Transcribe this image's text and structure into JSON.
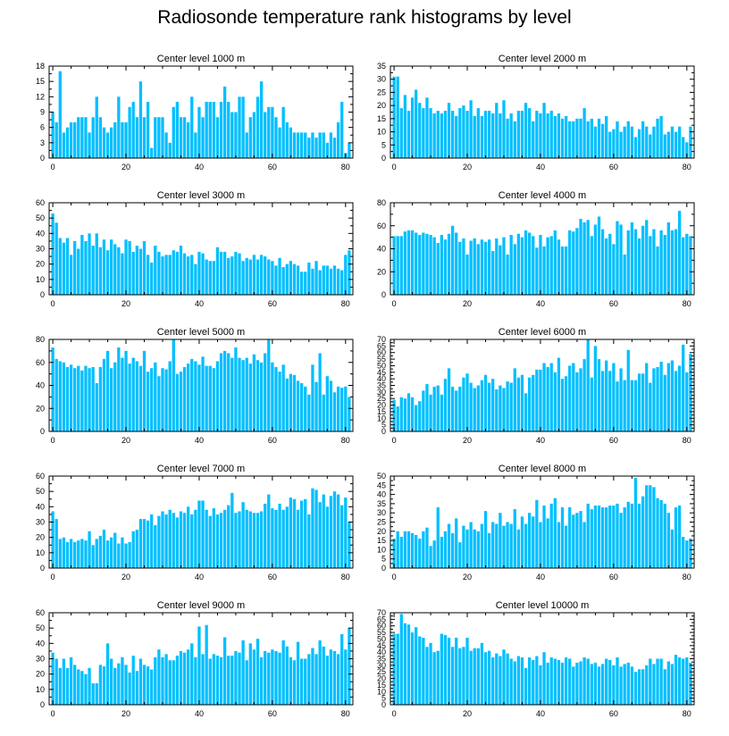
{
  "figure": {
    "title": "Radiosonde temperature rank histograms by level"
  },
  "chart_data": [
    {
      "type": "bar",
      "title": "Center level 1000 m",
      "xlim": [
        -1,
        82
      ],
      "ylim": [
        0,
        18
      ],
      "xticks": [
        0,
        20,
        40,
        60,
        80
      ],
      "yticks": [
        0,
        3,
        6,
        9,
        12,
        15,
        18
      ],
      "color": "#00bfff",
      "values": [
        9,
        7,
        17,
        5,
        6,
        7,
        7,
        8,
        8,
        8,
        5,
        8,
        12,
        8,
        6,
        5,
        6,
        7,
        12,
        7,
        7,
        10,
        11,
        8,
        15,
        8,
        11,
        2,
        8,
        8,
        8,
        5,
        3,
        10,
        11,
        8,
        8,
        7,
        12,
        5,
        10,
        8,
        11,
        11,
        11,
        8,
        11,
        14,
        11,
        9,
        9,
        12,
        12,
        5,
        8,
        9,
        12,
        15,
        9,
        10,
        10,
        8,
        6,
        10,
        7,
        6,
        5,
        5,
        5,
        5,
        4,
        5,
        4,
        5,
        5,
        3,
        5,
        4,
        7,
        11,
        1,
        3
      ]
    },
    {
      "type": "bar",
      "title": "Center level 2000 m",
      "xlim": [
        -1,
        82
      ],
      "ylim": [
        0,
        35
      ],
      "xticks": [
        0,
        20,
        40,
        60,
        80
      ],
      "yticks": [
        0,
        5,
        10,
        15,
        20,
        25,
        30,
        35
      ],
      "color": "#00bfff",
      "values": [
        31,
        31,
        19,
        24,
        18,
        23,
        26,
        21,
        19,
        23,
        19,
        17,
        18,
        17,
        18,
        21,
        18,
        16,
        19,
        20,
        18,
        22,
        16,
        19,
        16,
        18,
        18,
        17,
        21,
        17,
        22,
        15,
        17,
        14,
        18,
        18,
        21,
        19,
        14,
        18,
        17,
        21,
        17,
        18,
        16,
        17,
        15,
        16,
        14,
        14,
        15,
        15,
        19,
        14,
        15,
        12,
        15,
        13,
        16,
        10,
        11,
        14,
        10,
        12,
        14,
        12,
        8,
        11,
        14,
        12,
        9,
        12,
        15,
        16,
        9,
        10,
        12,
        10,
        12,
        8,
        6,
        12
      ]
    },
    {
      "type": "bar",
      "title": "Center level 3000 m",
      "xlim": [
        -1,
        82
      ],
      "ylim": [
        0,
        60
      ],
      "xticks": [
        0,
        20,
        40,
        60,
        80
      ],
      "yticks": [
        0,
        10,
        20,
        30,
        40,
        50,
        60
      ],
      "color": "#00bfff",
      "values": [
        53,
        47,
        37,
        34,
        37,
        26,
        35,
        30,
        39,
        35,
        40,
        32,
        40,
        31,
        36,
        29,
        36,
        33,
        31,
        27,
        36,
        35,
        28,
        32,
        30,
        35,
        26,
        21,
        32,
        28,
        25,
        26,
        26,
        29,
        28,
        32,
        27,
        25,
        26,
        20,
        28,
        27,
        23,
        22,
        22,
        31,
        28,
        28,
        24,
        25,
        28,
        27,
        22,
        24,
        23,
        26,
        23,
        26,
        25,
        23,
        22,
        19,
        24,
        18,
        20,
        22,
        20,
        19,
        15,
        15,
        21,
        17,
        22,
        16,
        19,
        19,
        17,
        19,
        17,
        16,
        26,
        29
      ]
    },
    {
      "type": "bar",
      "title": "Center level 4000 m",
      "xlim": [
        -1,
        82
      ],
      "ylim": [
        0,
        80
      ],
      "xticks": [
        0,
        20,
        40,
        60,
        80
      ],
      "yticks": [
        0,
        20,
        40,
        60,
        80
      ],
      "color": "#00bfff",
      "values": [
        51,
        51,
        51,
        55,
        56,
        56,
        54,
        52,
        54,
        53,
        52,
        50,
        45,
        52,
        48,
        53,
        60,
        54,
        46,
        49,
        35,
        47,
        49,
        44,
        48,
        46,
        48,
        38,
        49,
        43,
        50,
        35,
        52,
        44,
        53,
        50,
        56,
        54,
        51,
        41,
        52,
        42,
        50,
        51,
        56,
        48,
        42,
        42,
        56,
        55,
        58,
        66,
        63,
        65,
        51,
        61,
        68,
        57,
        49,
        53,
        44,
        64,
        61,
        35,
        56,
        63,
        57,
        49,
        60,
        65,
        51,
        57,
        42,
        56,
        52,
        63,
        56,
        57,
        73,
        50,
        53,
        51
      ]
    },
    {
      "type": "bar",
      "title": "Center level 5000 m",
      "xlim": [
        -1,
        82
      ],
      "ylim": [
        0,
        80
      ],
      "xticks": [
        0,
        20,
        40,
        60,
        80
      ],
      "yticks": [
        0,
        20,
        40,
        60,
        80
      ],
      "color": "#00bfff",
      "values": [
        73,
        63,
        61,
        60,
        56,
        58,
        55,
        57,
        53,
        57,
        55,
        56,
        42,
        56,
        63,
        70,
        55,
        60,
        73,
        64,
        70,
        59,
        64,
        61,
        57,
        70,
        52,
        55,
        60,
        48,
        55,
        54,
        61,
        81,
        50,
        52,
        56,
        59,
        63,
        61,
        58,
        65,
        57,
        57,
        55,
        61,
        68,
        70,
        68,
        64,
        73,
        64,
        62,
        64,
        59,
        67,
        62,
        60,
        68,
        80,
        60,
        56,
        52,
        58,
        46,
        50,
        49,
        44,
        42,
        39,
        32,
        58,
        43,
        68,
        32,
        48,
        44,
        34,
        39,
        38,
        39,
        30
      ]
    },
    {
      "type": "bar",
      "title": "Center level 6000 m",
      "xlim": [
        -1,
        82
      ],
      "ylim": [
        0,
        70
      ],
      "xticks": [
        0,
        20,
        40,
        60,
        80
      ],
      "yticks": [
        0,
        5,
        10,
        15,
        20,
        25,
        30,
        35,
        40,
        45,
        50,
        55,
        60,
        65,
        70
      ],
      "color": "#00bfff",
      "values": [
        24,
        19,
        26,
        25,
        29,
        26,
        20,
        23,
        31,
        36,
        28,
        34,
        35,
        28,
        40,
        48,
        34,
        31,
        34,
        41,
        44,
        37,
        33,
        35,
        39,
        43,
        37,
        40,
        32,
        35,
        33,
        38,
        37,
        48,
        41,
        43,
        29,
        41,
        43,
        47,
        47,
        52,
        49,
        52,
        45,
        56,
        40,
        42,
        50,
        52,
        45,
        48,
        55,
        70,
        41,
        65,
        55,
        46,
        54,
        46,
        52,
        38,
        48,
        39,
        62,
        39,
        39,
        44,
        44,
        52,
        37,
        48,
        49,
        53,
        43,
        52,
        54,
        46,
        50,
        66,
        45,
        59
      ]
    },
    {
      "type": "bar",
      "title": "Center level 7000 m",
      "xlim": [
        -1,
        82
      ],
      "ylim": [
        0,
        60
      ],
      "xticks": [
        0,
        20,
        40,
        60,
        80
      ],
      "yticks": [
        0,
        10,
        20,
        30,
        40,
        50,
        60
      ],
      "color": "#00bfff",
      "values": [
        37,
        32,
        19,
        20,
        17,
        19,
        17,
        18,
        19,
        18,
        24,
        15,
        19,
        21,
        25,
        18,
        20,
        23,
        16,
        20,
        16,
        17,
        24,
        25,
        32,
        32,
        31,
        35,
        28,
        34,
        37,
        35,
        38,
        36,
        33,
        37,
        36,
        40,
        35,
        38,
        44,
        44,
        38,
        34,
        39,
        35,
        36,
        38,
        41,
        49,
        36,
        37,
        43,
        38,
        37,
        36,
        36,
        37,
        42,
        48,
        39,
        38,
        42,
        38,
        40,
        46,
        45,
        38,
        44,
        45,
        35,
        52,
        51,
        43,
        48,
        40,
        47,
        50,
        48,
        41,
        46,
        30
      ]
    },
    {
      "type": "bar",
      "title": "Center level 8000 m",
      "xlim": [
        -1,
        82
      ],
      "ylim": [
        0,
        50
      ],
      "xticks": [
        0,
        20,
        40,
        60,
        80
      ],
      "yticks": [
        0,
        5,
        10,
        15,
        20,
        25,
        30,
        35,
        40,
        45,
        50
      ],
      "color": "#00bfff",
      "values": [
        16,
        20,
        17,
        20,
        20,
        19,
        18,
        16,
        20,
        22,
        12,
        15,
        33,
        17,
        20,
        24,
        19,
        27,
        14,
        23,
        21,
        25,
        21,
        20,
        24,
        31,
        19,
        25,
        24,
        30,
        23,
        25,
        24,
        32,
        21,
        28,
        24,
        30,
        28,
        37,
        25,
        34,
        27,
        35,
        38,
        25,
        33,
        23,
        33,
        29,
        30,
        31,
        25,
        35,
        32,
        34,
        34,
        33,
        33,
        34,
        34,
        35,
        30,
        33,
        36,
        35,
        49,
        35,
        39,
        45,
        45,
        44,
        38,
        37,
        35,
        30,
        21,
        33,
        34,
        17,
        15,
        16
      ]
    },
    {
      "type": "bar",
      "title": "Center level 9000 m",
      "xlim": [
        -1,
        82
      ],
      "ylim": [
        0,
        60
      ],
      "xticks": [
        0,
        20,
        40,
        60,
        80
      ],
      "yticks": [
        0,
        10,
        20,
        30,
        40,
        50,
        60
      ],
      "color": "#00bfff",
      "values": [
        34,
        30,
        24,
        30,
        24,
        31,
        26,
        23,
        22,
        20,
        24,
        14,
        14,
        26,
        25,
        40,
        30,
        24,
        27,
        31,
        26,
        21,
        32,
        22,
        30,
        26,
        25,
        23,
        31,
        36,
        31,
        33,
        29,
        29,
        32,
        35,
        34,
        36,
        40,
        31,
        51,
        33,
        52,
        30,
        33,
        32,
        31,
        44,
        32,
        32,
        35,
        34,
        42,
        29,
        40,
        36,
        43,
        31,
        35,
        34,
        36,
        35,
        34,
        42,
        38,
        31,
        29,
        41,
        30,
        30,
        33,
        37,
        33,
        42,
        38,
        32,
        36,
        35,
        33,
        46,
        36,
        50
      ]
    },
    {
      "type": "bar",
      "title": "Center level 10000 m",
      "xlim": [
        -1,
        82
      ],
      "ylim": [
        0,
        70
      ],
      "xticks": [
        0,
        20,
        40,
        60,
        80
      ],
      "yticks": [
        0,
        5,
        10,
        15,
        20,
        25,
        30,
        35,
        40,
        45,
        50,
        55,
        60,
        65,
        70
      ],
      "color": "#00bfff",
      "values": [
        54,
        54,
        69,
        62,
        61,
        55,
        59,
        52,
        51,
        44,
        47,
        40,
        41,
        54,
        53,
        51,
        44,
        51,
        43,
        44,
        51,
        41,
        43,
        43,
        47,
        40,
        41,
        36,
        39,
        37,
        42,
        39,
        35,
        33,
        37,
        36,
        28,
        36,
        34,
        37,
        30,
        40,
        32,
        36,
        35,
        34,
        32,
        36,
        35,
        29,
        32,
        33,
        36,
        35,
        31,
        32,
        29,
        31,
        35,
        34,
        30,
        36,
        29,
        31,
        32,
        29,
        25,
        27,
        27,
        30,
        35,
        31,
        35,
        35,
        27,
        33,
        31,
        38,
        36,
        35,
        36,
        32
      ]
    }
  ]
}
